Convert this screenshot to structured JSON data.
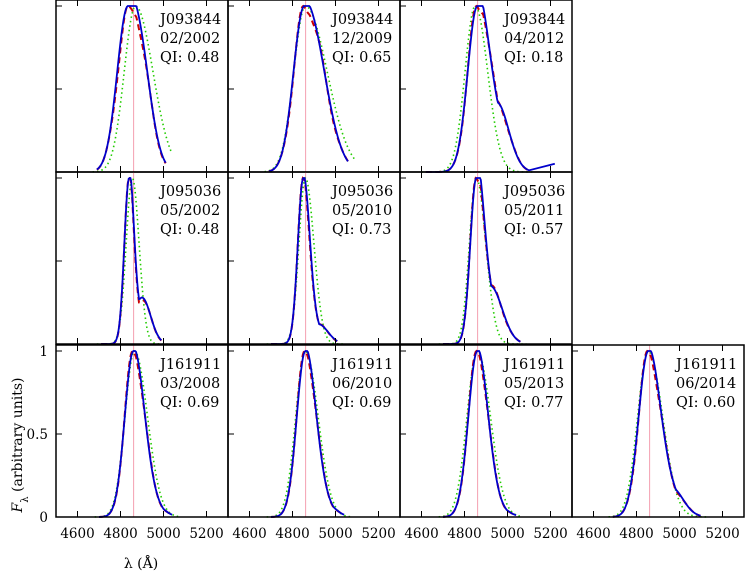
{
  "chart_data": {
    "type": "line",
    "xlabel": "λ (Å)",
    "ylabel_main": "F",
    "ylabel_sub": "λ",
    "ylabel_rest": " (arbitrary units)",
    "xlim": [
      4500,
      5300
    ],
    "ylim": [
      0,
      1
    ],
    "x_ticks": [
      4600,
      4800,
      5000,
      5200
    ],
    "y_ticks": [
      0,
      0.5,
      1
    ],
    "reference_line_x": 4861,
    "series_colors": {
      "red_dashed": "#cc0000",
      "green_dotted": "#22cc00",
      "blue_solid": "#0000cc",
      "reference": "#f4a0b0"
    },
    "panels": [
      {
        "row": 0,
        "col": 0,
        "object": "J093844",
        "date": "02/2002",
        "qi": "QI: 0.48",
        "peak": 4835,
        "sigL": 50,
        "sigR": 70,
        "wing": 0.3,
        "wingC": 4905,
        "wingW": 45,
        "startX": 4690,
        "endX": 5010,
        "greenShift": 35,
        "greenScale": 1.05,
        "tail": false
      },
      {
        "row": 0,
        "col": 1,
        "object": "J093844",
        "date": "12/2009",
        "qi": "QI: 0.65",
        "peak": 4855,
        "sigL": 50,
        "sigR": 85,
        "wing": 0.1,
        "wingC": 4930,
        "wingW": 60,
        "startX": 4690,
        "endX": 5060,
        "greenShift": 5,
        "greenScale": 1.08,
        "tail": false
      },
      {
        "row": 0,
        "col": 2,
        "object": "J093844",
        "date": "04/2012",
        "qi": "QI: 0.18",
        "peak": 4860,
        "sigL": 45,
        "sigR": 50,
        "wing": 0.42,
        "wingC": 4950,
        "wingW": 55,
        "startX": 4620,
        "endX": 5100,
        "greenShift": -10,
        "greenScale": 1.05,
        "tail": true
      },
      {
        "row": 1,
        "col": 0,
        "object": "J095036",
        "date": "05/2002",
        "qi": "QI: 0.48",
        "peak": 4840,
        "sigL": 22,
        "sigR": 22,
        "wing": 0.28,
        "wingC": 4900,
        "wingW": 40,
        "startX": 4710,
        "endX": 4990,
        "greenShift": 15,
        "greenScale": 1.3,
        "tail": false
      },
      {
        "row": 1,
        "col": 1,
        "object": "J095036",
        "date": "05/2010",
        "qi": "QI: 0.73",
        "peak": 4850,
        "sigL": 25,
        "sigR": 30,
        "wing": 0.12,
        "wingC": 4920,
        "wingW": 45,
        "startX": 4700,
        "endX": 5010,
        "greenShift": 10,
        "greenScale": 1.2,
        "tail": false
      },
      {
        "row": 1,
        "col": 2,
        "object": "J095036",
        "date": "05/2011",
        "qi": "QI: 0.57",
        "peak": 4855,
        "sigL": 28,
        "sigR": 35,
        "wing": 0.35,
        "wingC": 4920,
        "wingW": 55,
        "startX": 4700,
        "endX": 5060,
        "greenShift": 0,
        "greenScale": 1.15,
        "tail": false
      },
      {
        "row": 2,
        "col": 0,
        "object": "J161911",
        "date": "03/2008",
        "qi": "QI: 0.69",
        "peak": 4860,
        "sigL": 40,
        "sigR": 50,
        "wing": 0.1,
        "wingC": 4940,
        "wingW": 50,
        "startX": 4700,
        "endX": 5040,
        "greenShift": 5,
        "greenScale": 1.1,
        "tail": false
      },
      {
        "row": 2,
        "col": 1,
        "object": "J161911",
        "date": "06/2010",
        "qi": "QI: 0.69",
        "peak": 4860,
        "sigL": 40,
        "sigR": 48,
        "wing": 0.1,
        "wingC": 4940,
        "wingW": 50,
        "startX": 4700,
        "endX": 5040,
        "greenShift": 0,
        "greenScale": 1.12,
        "tail": false
      },
      {
        "row": 2,
        "col": 2,
        "object": "J161911",
        "date": "05/2013",
        "qi": "QI: 0.77",
        "peak": 4860,
        "sigL": 42,
        "sigR": 48,
        "wing": 0.08,
        "wingC": 4940,
        "wingW": 50,
        "startX": 4700,
        "endX": 5040,
        "greenShift": 0,
        "greenScale": 1.15,
        "tail": false
      },
      {
        "row": 2,
        "col": 3,
        "object": "J161911",
        "date": "06/2014",
        "qi": "QI: 0.60",
        "peak": 4855,
        "sigL": 45,
        "sigR": 55,
        "wing": 0.18,
        "wingC": 4960,
        "wingW": 55,
        "startX": 4690,
        "endX": 5100,
        "greenShift": 0,
        "greenScale": 1.1,
        "tail": false
      }
    ]
  }
}
